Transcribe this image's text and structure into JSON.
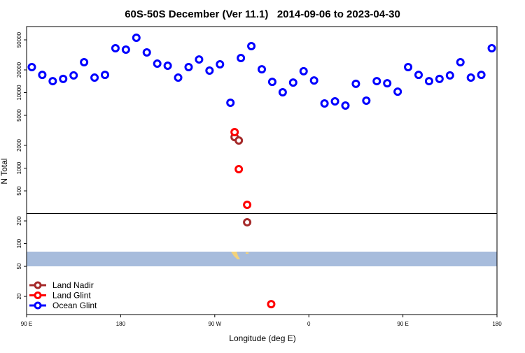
{
  "chart_data": {
    "type": "scatter",
    "title": "60S-50S December (Ver 11.1)   2014-09-06 to 2023-04-30",
    "xlabel": "Longitude (deg E)",
    "ylabel": "N Total",
    "log_y": true,
    "legend": "lower left",
    "xlim": [
      90,
      540
    ],
    "ylim": [
      11.5,
      75000
    ],
    "xticks": [
      {
        "value": 90,
        "label": "90 E"
      },
      {
        "value": 180,
        "label": "180"
      },
      {
        "value": 270,
        "label": "90 W"
      },
      {
        "value": 360,
        "label": "0"
      },
      {
        "value": 450,
        "label": "90 E"
      },
      {
        "value": 540,
        "label": "180"
      }
    ],
    "yticks": [
      20,
      50,
      100,
      200,
      500,
      1000,
      2000,
      5000,
      10000,
      20000,
      50000
    ],
    "reference_line": 250,
    "series": [
      {
        "name": "Land Nadir",
        "color": "#a52a2a",
        "x": [
          289,
          293,
          301
        ],
        "values": [
          2580,
          2320,
          192
        ]
      },
      {
        "name": "Land Glint",
        "color": "#ff0000",
        "x": [
          289,
          293,
          301,
          324
        ],
        "values": [
          3000,
          968,
          327,
          15.8
        ]
      },
      {
        "name": "Ocean Glint",
        "color": "#0000ff",
        "x": [
          95,
          105,
          115,
          125,
          135,
          145,
          155,
          165,
          175,
          185,
          195,
          205,
          215,
          225,
          235,
          245,
          255,
          265,
          275,
          285,
          295,
          305,
          315,
          325,
          335,
          345,
          355,
          365,
          375,
          385,
          395,
          405,
          415,
          425,
          435,
          445,
          455,
          465,
          475,
          485,
          495,
          505,
          515,
          525,
          535
        ],
        "values": [
          21800,
          17200,
          14200,
          15200,
          16900,
          25300,
          15800,
          17200,
          38700,
          37100,
          53300,
          34100,
          24200,
          22700,
          15800,
          21800,
          27500,
          19600,
          23700,
          7340,
          28700,
          41300,
          20400,
          13900,
          10100,
          13600,
          19200,
          14500,
          7190,
          7660,
          6740,
          13100,
          7830,
          14200,
          13300,
          10300,
          21800,
          17200,
          14200,
          15200,
          16900,
          25300,
          15800,
          17200,
          38700
        ]
      }
    ]
  }
}
